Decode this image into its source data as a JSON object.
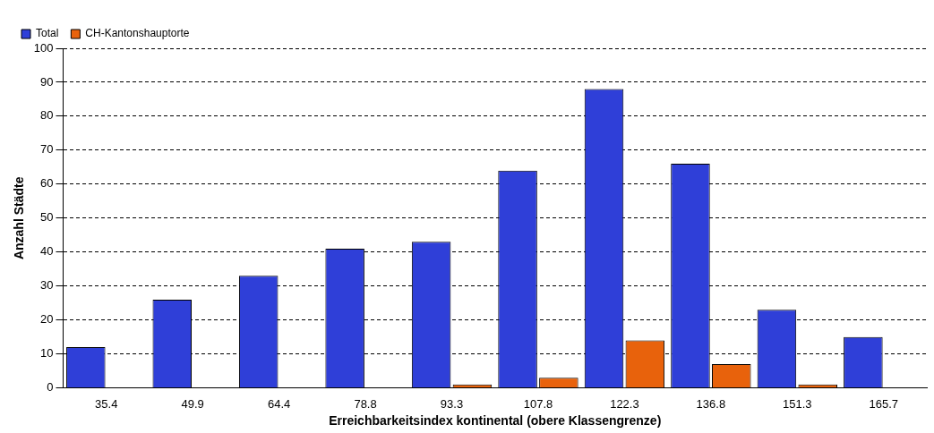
{
  "chart_data": {
    "type": "bar",
    "xlabel": "Erreichbarkeitsindex kontinental (obere Klassengrenze)",
    "ylabel": "Anzahl Städte",
    "categories": [
      "35.4",
      "49.9",
      "64.4",
      "78.8",
      "93.3",
      "107.8",
      "122.3",
      "136.8",
      "151.3",
      "165.7"
    ],
    "series": [
      {
        "name": "Total",
        "color": "#2f3fd8",
        "values": [
          12,
          26,
          33,
          41,
          43,
          64,
          88,
          66,
          23,
          15
        ]
      },
      {
        "name": "CH-Kantonshauptorte",
        "color": "#e8620c",
        "values": [
          0,
          0,
          0,
          0,
          1,
          3,
          14,
          7,
          1,
          0
        ]
      }
    ],
    "ylim": [
      0,
      100
    ],
    "yticks": [
      0,
      10,
      20,
      30,
      40,
      50,
      60,
      70,
      80,
      90,
      100
    ],
    "grid": "y",
    "legend": "top left"
  }
}
